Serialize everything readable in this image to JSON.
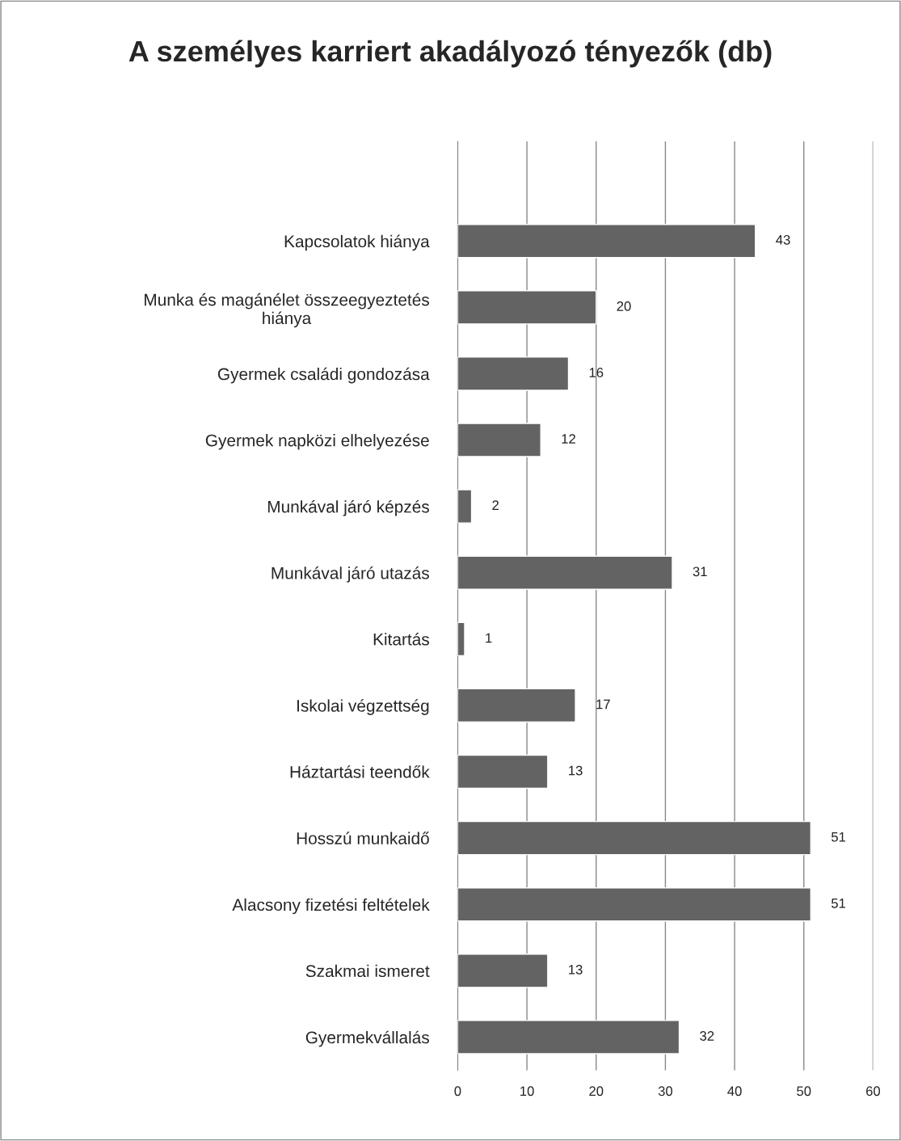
{
  "chart_data": {
    "type": "bar",
    "orientation": "horizontal",
    "title": "A személyes karriert akadályozó tényezők (db)",
    "categories": [
      null,
      "Kapcsolatok hiánya",
      "Munka és magánélet összeegyeztetés\nhiánya",
      "Gyermek családi gondozása",
      "Gyermek napközi elhelyezése",
      "Munkával járó képzés",
      "Munkával járó utazás",
      "Kitartás",
      "Iskolai végzettség",
      "Háztartási teendők",
      "Hosszú munkaidő",
      "Alacsony fizetési feltételek",
      "Szakmai ismeret",
      "Gyermekvállalás"
    ],
    "values": [
      null,
      43,
      20,
      16,
      12,
      2,
      31,
      1,
      17,
      13,
      51,
      51,
      13,
      32
    ],
    "color": "#636363",
    "xlim": [
      0,
      60
    ],
    "xticks": [
      0,
      10,
      20,
      30,
      40,
      50,
      60
    ],
    "grid": "x",
    "data_labels": true
  }
}
